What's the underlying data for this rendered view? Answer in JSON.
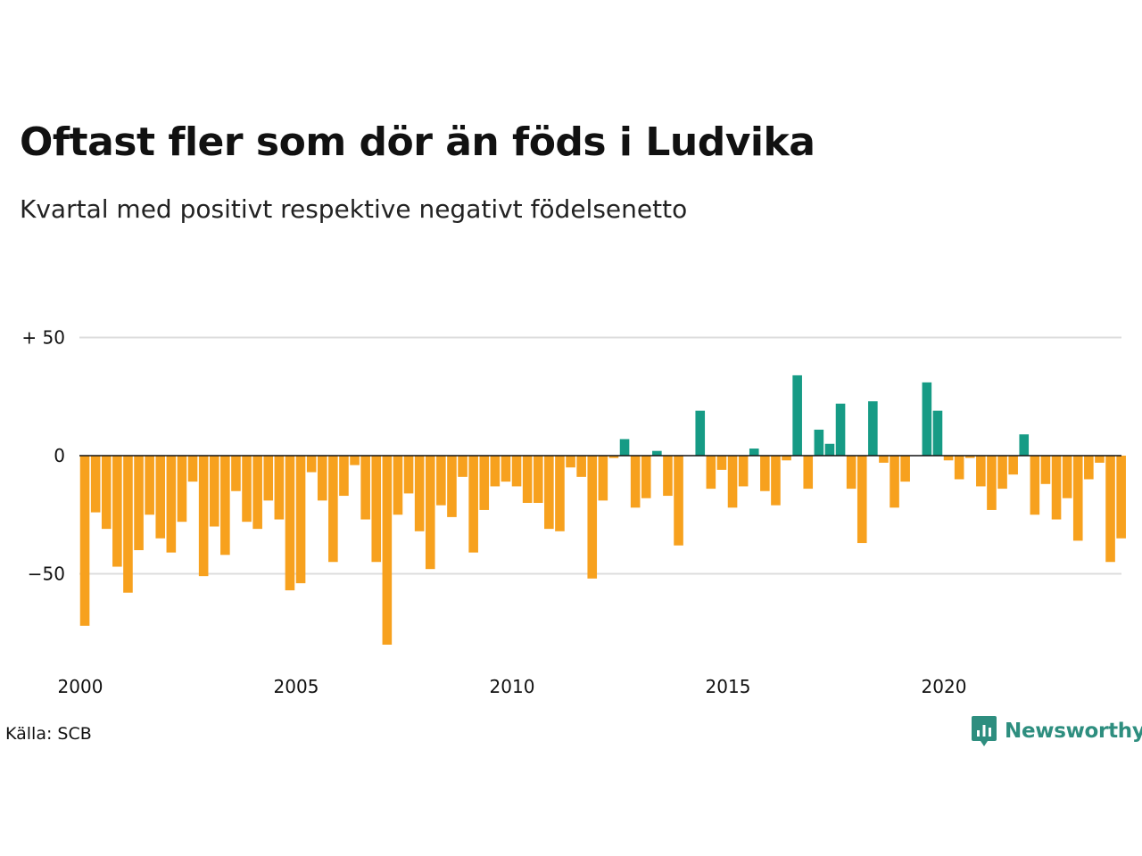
{
  "chart_data": {
    "type": "bar",
    "title": "Oftast fler som dör än föds i Ludvika",
    "subtitle": "Kvartal med positivt respektive negativt födelsenetto",
    "source": "Källa: SCB",
    "brand": "Newsworthy",
    "x_start_year": 2000,
    "bars_per_year": 4,
    "x_ticks": [
      "2000",
      "2005",
      "2010",
      "2015",
      "2020"
    ],
    "y_ticks": [
      {
        "value": 50,
        "label": "+ 50"
      },
      {
        "value": 0,
        "label": "0"
      },
      {
        "value": -50,
        "label": "−50"
      }
    ],
    "ylim": [
      -82,
      52
    ],
    "grid": true,
    "colors": {
      "positive": "#169b85",
      "negative": "#f7a11e",
      "grid": "#dddddd",
      "zero": "#111111"
    },
    "values": [
      -72,
      -24,
      -31,
      -47,
      -58,
      -40,
      -25,
      -35,
      -41,
      -28,
      -11,
      -51,
      -30,
      -42,
      -15,
      -28,
      -31,
      -19,
      -27,
      -57,
      -54,
      -7,
      -19,
      -45,
      -17,
      -4,
      -27,
      -45,
      -80,
      -25,
      -16,
      -32,
      -48,
      -21,
      -26,
      -9,
      -41,
      -23,
      -13,
      -11,
      -13,
      -20,
      -20,
      -31,
      -32,
      -5,
      -9,
      -52,
      -19,
      -1,
      7,
      -22,
      -18,
      2,
      -17,
      -38,
      0,
      19,
      -14,
      -6,
      -22,
      -13,
      3,
      -15,
      -21,
      -2,
      34,
      -14,
      11,
      5,
      22,
      -14,
      -37,
      23,
      -3,
      -22,
      -11,
      0,
      31,
      19,
      -2,
      -10,
      -1,
      -13,
      -23,
      -14,
      -8,
      9,
      -25,
      -12,
      -27,
      -18,
      -36,
      -10,
      -3,
      -45,
      -35
    ]
  }
}
